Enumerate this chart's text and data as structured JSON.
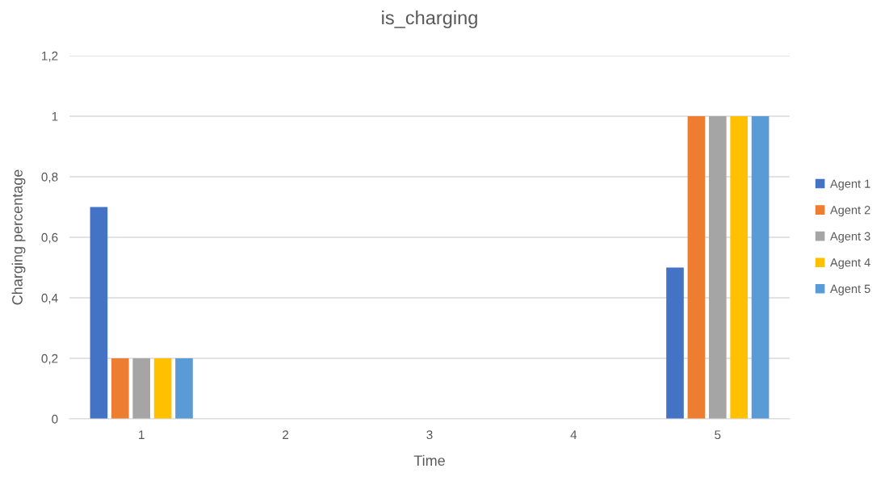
{
  "chart_data": {
    "type": "bar",
    "title": "is_charging",
    "xlabel": "Time",
    "ylabel": "Charging percentage",
    "categories": [
      "1",
      "2",
      "3",
      "4",
      "5"
    ],
    "series": [
      {
        "name": "Agent 1",
        "color": "#4472c4",
        "values": [
          0.7,
          0,
          0,
          0,
          0.5
        ]
      },
      {
        "name": "Agent 2",
        "color": "#ed7d31",
        "values": [
          0.2,
          0,
          0,
          0,
          1
        ]
      },
      {
        "name": "Agent 3",
        "color": "#a5a5a5",
        "values": [
          0.2,
          0,
          0,
          0,
          1
        ]
      },
      {
        "name": "Agent 4",
        "color": "#ffc000",
        "values": [
          0.2,
          0,
          0,
          0,
          1
        ]
      },
      {
        "name": "Agent 5",
        "color": "#5b9bd5",
        "values": [
          0.2,
          0,
          0,
          0,
          1
        ]
      }
    ],
    "ylim": [
      0,
      1.2
    ],
    "yticks": [
      0,
      {
        "value": 0.2,
        "label": "0,2"
      },
      {
        "value": 0.4,
        "label": "0,4"
      },
      {
        "value": 0.6,
        "label": "0,6"
      },
      {
        "value": 0.8,
        "label": "0,8"
      },
      1,
      {
        "value": 1.2,
        "label": "1,2"
      }
    ],
    "grid": "y",
    "legend": "right"
  }
}
